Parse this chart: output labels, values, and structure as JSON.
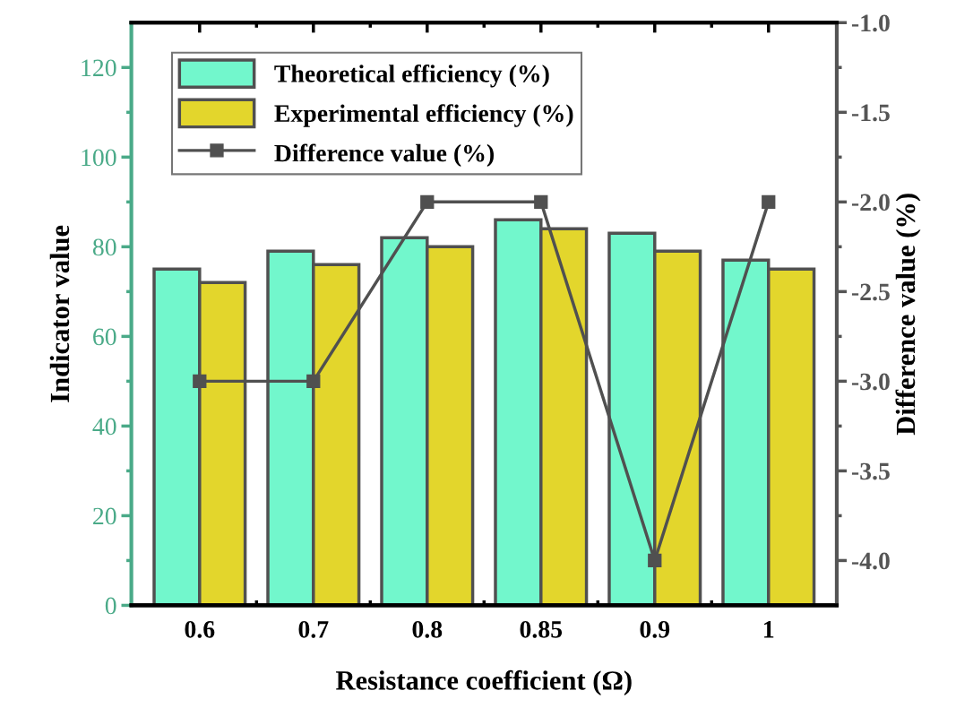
{
  "chart_data": {
    "type": "bar",
    "xlabel": "Resistance coefficient (Ω)",
    "ylabel": "Indicator value",
    "y2label": "Difference value (%)",
    "categories": [
      "0.6",
      "0.7",
      "0.8",
      "0.85",
      "0.9",
      "1"
    ],
    "series": [
      {
        "name": "Theoretical efficiency (%)",
        "color": "#72f7cc",
        "values": [
          75,
          79,
          82,
          86,
          83,
          77
        ]
      },
      {
        "name": "Experimental efficiency (%)",
        "color": "#e3d62c",
        "values": [
          72,
          76,
          80,
          84,
          79,
          75
        ]
      },
      {
        "name": "Difference value (%)",
        "type": "line",
        "axis": "y2",
        "color": "#505050",
        "marker": "square",
        "values": [
          -3,
          -3,
          -2,
          -2,
          -4,
          -2
        ]
      }
    ],
    "ylim": [
      0,
      130
    ],
    "yticks": [
      0,
      20,
      40,
      60,
      80,
      100,
      120
    ],
    "y2lim": [
      -4.25,
      -1.0
    ],
    "y2ticks": [
      {
        "value": -4,
        "label": "-4.0"
      },
      -3.5,
      {
        "value": -3,
        "label": "-3.0"
      },
      -2.5,
      {
        "value": -2,
        "label": "-2.0"
      },
      -1.5,
      {
        "value": -1,
        "label": "-1.0"
      }
    ],
    "legend": "top left",
    "grid": false
  }
}
